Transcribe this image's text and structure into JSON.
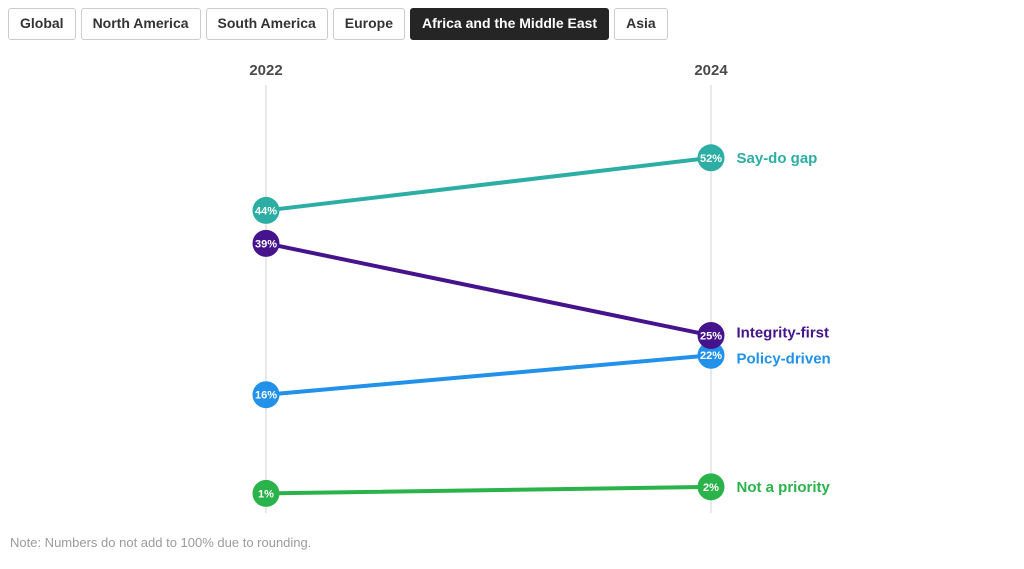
{
  "tabs": [
    {
      "label": "Global",
      "active": false
    },
    {
      "label": "North America",
      "active": false
    },
    {
      "label": "South America",
      "active": false
    },
    {
      "label": "Europe",
      "active": false
    },
    {
      "label": "Africa and the Middle East",
      "active": true
    },
    {
      "label": "Asia",
      "active": false
    }
  ],
  "chart_data": {
    "type": "line",
    "subtype": "slope",
    "x": [
      "2022",
      "2024"
    ],
    "series": [
      {
        "name": "Say-do gap",
        "values": [
          44,
          52
        ],
        "color": "#2CAEA4"
      },
      {
        "name": "Integrity-first",
        "values": [
          39,
          25
        ],
        "color": "#45148C"
      },
      {
        "name": "Policy-driven",
        "values": [
          16,
          22
        ],
        "color": "#2191EA"
      },
      {
        "name": "Not a priority",
        "values": [
          1,
          2
        ],
        "color": "#2BB34B"
      }
    ],
    "value_suffix": "%",
    "ylim": [
      0,
      63
    ],
    "grid": "vertical-columns-only",
    "legend_position": "right-of-2024-points",
    "axis_text_color": "#4a4a4a"
  },
  "note": "Note: Numbers do not add to 100% due to rounding."
}
